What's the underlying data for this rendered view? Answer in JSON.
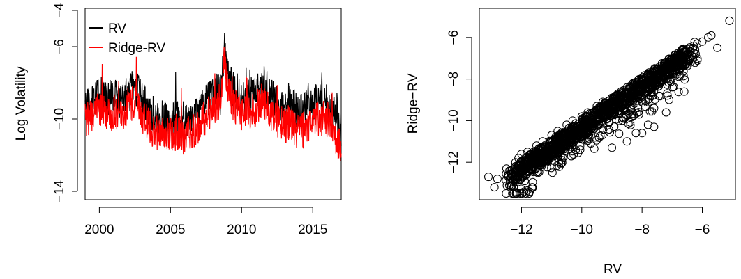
{
  "chart_data": [
    {
      "type": "line",
      "title": "",
      "xlabel": "",
      "ylabel": "Log Volatility",
      "xlim": [
        1999.0,
        2017.0
      ],
      "ylim": [
        -14,
        -4
      ],
      "x_ticks": [
        2000,
        2005,
        2010,
        2015
      ],
      "x_tick_labels": [
        "2000",
        "2005",
        "2010",
        "2015"
      ],
      "y_ticks": [
        -14,
        -10,
        -6,
        -4
      ],
      "y_tick_labels": [
        "−14",
        "−10",
        "−6",
        "−4"
      ],
      "grid": false,
      "legend_position": "top-left",
      "colors": {
        "RV": "#000000",
        "Ridge-RV": "#ff0000"
      },
      "series": [
        {
          "name": "RV",
          "x": [
            1999.0,
            1999.5,
            2000.0,
            2000.5,
            2001.0,
            2001.5,
            2002.0,
            2002.5,
            2003.0,
            2003.5,
            2004.0,
            2004.5,
            2005.0,
            2005.5,
            2006.0,
            2006.5,
            2007.0,
            2007.5,
            2008.0,
            2008.5,
            2008.8,
            2009.0,
            2009.5,
            2010.0,
            2010.5,
            2011.0,
            2011.5,
            2012.0,
            2012.5,
            2013.0,
            2013.5,
            2014.0,
            2014.5,
            2015.0,
            2015.5,
            2016.0,
            2016.5,
            2017.0
          ],
          "values": [
            -9.3,
            -9.0,
            -8.6,
            -8.9,
            -8.7,
            -9.0,
            -8.5,
            -8.2,
            -8.9,
            -9.5,
            -9.9,
            -10.0,
            -10.0,
            -10.0,
            -10.2,
            -9.9,
            -9.7,
            -9.0,
            -8.7,
            -8.4,
            -6.0,
            -7.6,
            -8.5,
            -8.9,
            -8.7,
            -8.6,
            -7.9,
            -8.7,
            -9.0,
            -9.3,
            -9.1,
            -9.7,
            -9.4,
            -9.2,
            -8.8,
            -9.1,
            -9.7,
            -10.6
          ]
        },
        {
          "name": "Ridge-RV",
          "x": [
            1999.0,
            1999.5,
            2000.0,
            2000.5,
            2001.0,
            2001.5,
            2002.0,
            2002.5,
            2003.0,
            2003.5,
            2004.0,
            2004.5,
            2005.0,
            2005.5,
            2006.0,
            2006.5,
            2007.0,
            2007.5,
            2008.0,
            2008.5,
            2008.8,
            2009.0,
            2009.5,
            2010.0,
            2010.5,
            2011.0,
            2011.5,
            2012.0,
            2012.5,
            2013.0,
            2013.5,
            2014.0,
            2014.5,
            2015.0,
            2015.5,
            2016.0,
            2016.5,
            2017.0
          ],
          "values": [
            -10.0,
            -9.8,
            -9.4,
            -9.8,
            -9.6,
            -9.9,
            -9.3,
            -9.0,
            -9.8,
            -10.4,
            -10.8,
            -10.9,
            -10.8,
            -10.8,
            -11.0,
            -10.7,
            -10.4,
            -9.8,
            -9.4,
            -9.0,
            -6.3,
            -8.3,
            -9.3,
            -9.7,
            -9.6,
            -9.5,
            -8.8,
            -9.7,
            -10.1,
            -10.4,
            -10.2,
            -10.8,
            -10.5,
            -10.3,
            -9.9,
            -10.1,
            -10.8,
            -11.6
          ]
        }
      ]
    },
    {
      "type": "scatter",
      "title": "",
      "xlabel": "RV",
      "ylabel": "Ridge−RV",
      "xlim": [
        -13.4,
        -4.9
      ],
      "ylim": [
        -13.8,
        -4.6
      ],
      "x_ticks": [
        -12,
        -10,
        -8,
        -6
      ],
      "x_tick_labels": [
        "−12",
        "−10",
        "−8",
        "−6"
      ],
      "y_ticks": [
        -12,
        -10,
        -8,
        -6
      ],
      "y_tick_labels": [
        "−12",
        "−10",
        "−8",
        "−6"
      ],
      "grid": false,
      "marker": "open-circle",
      "series": [
        {
          "x": [
            -13.1,
            -12.8,
            -12.9,
            -12.5,
            -12.2,
            -12.4,
            -12.0,
            -11.8,
            -11.9,
            -11.5,
            -11.3,
            -11.4,
            -11.0,
            -10.8,
            -10.9,
            -10.5,
            -10.3,
            -10.4,
            -10.0,
            -9.8,
            -9.9,
            -9.5,
            -9.3,
            -9.4,
            -9.0,
            -8.8,
            -8.9,
            -8.5,
            -8.3,
            -8.4,
            -8.0,
            -7.8,
            -7.9,
            -7.5,
            -7.3,
            -7.4,
            -7.0,
            -6.8,
            -6.5,
            -6.3,
            -6.0,
            -5.8,
            -5.7,
            -5.5,
            -5.1,
            -12.1,
            -11.6,
            -11.1,
            -10.6,
            -10.1,
            -9.6,
            -9.1,
            -8.6,
            -8.1,
            -7.6,
            -7.1,
            -8.2,
            -7.8,
            -7.2,
            -6.6,
            -9.0,
            -8.5,
            -8.0,
            -7.6,
            -11.2,
            -10.7,
            -10.2,
            -9.7
          ],
          "y": [
            -12.7,
            -12.8,
            -13.2,
            -12.3,
            -12.0,
            -12.4,
            -11.6,
            -11.5,
            -11.9,
            -11.2,
            -11.0,
            -11.4,
            -10.7,
            -10.5,
            -11.0,
            -10.2,
            -10.0,
            -10.5,
            -9.8,
            -9.6,
            -10.1,
            -9.3,
            -9.1,
            -9.6,
            -8.9,
            -8.7,
            -9.2,
            -8.4,
            -8.2,
            -8.8,
            -8.0,
            -7.8,
            -8.4,
            -7.6,
            -7.4,
            -8.2,
            -7.3,
            -7.1,
            -6.8,
            -6.5,
            -6.2,
            -6.0,
            -5.9,
            -6.5,
            -5.2,
            -11.8,
            -11.5,
            -11.2,
            -10.9,
            -10.7,
            -10.4,
            -10.1,
            -9.9,
            -9.7,
            -9.4,
            -9.0,
            -10.6,
            -10.2,
            -9.6,
            -8.6,
            -11.3,
            -11.0,
            -10.6,
            -10.3,
            -12.0,
            -11.7,
            -11.4,
            -11.1
          ]
        }
      ]
    }
  ]
}
